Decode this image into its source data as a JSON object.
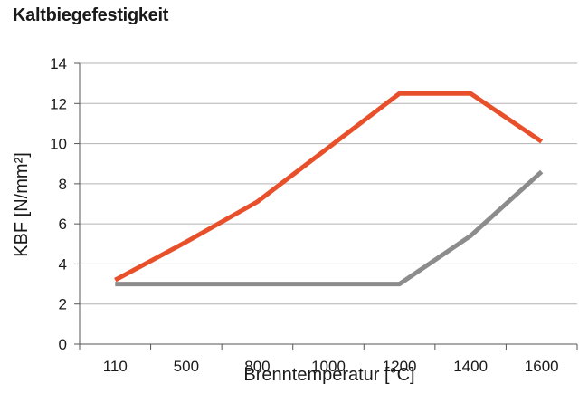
{
  "chart_data": {
    "type": "line",
    "title": "Kaltbiegefestigkeit",
    "xlabel": "Brenntemperatur [°C]",
    "ylabel": "KBF [N/mm²]",
    "categories": [
      "110",
      "500",
      "800",
      "1000",
      "1200",
      "1400",
      "1600"
    ],
    "ylim": [
      0,
      14
    ],
    "yticks": [
      0,
      2,
      4,
      6,
      8,
      10,
      12,
      14
    ],
    "grid": true,
    "series": [
      {
        "color": "#e8502b",
        "values": [
          3.2,
          5.1,
          7.1,
          9.8,
          12.5,
          12.5,
          10.1
        ]
      },
      {
        "color": "#8c8c8c",
        "values": [
          3.0,
          3.0,
          3.0,
          3.0,
          3.0,
          5.4,
          8.6
        ]
      }
    ]
  }
}
